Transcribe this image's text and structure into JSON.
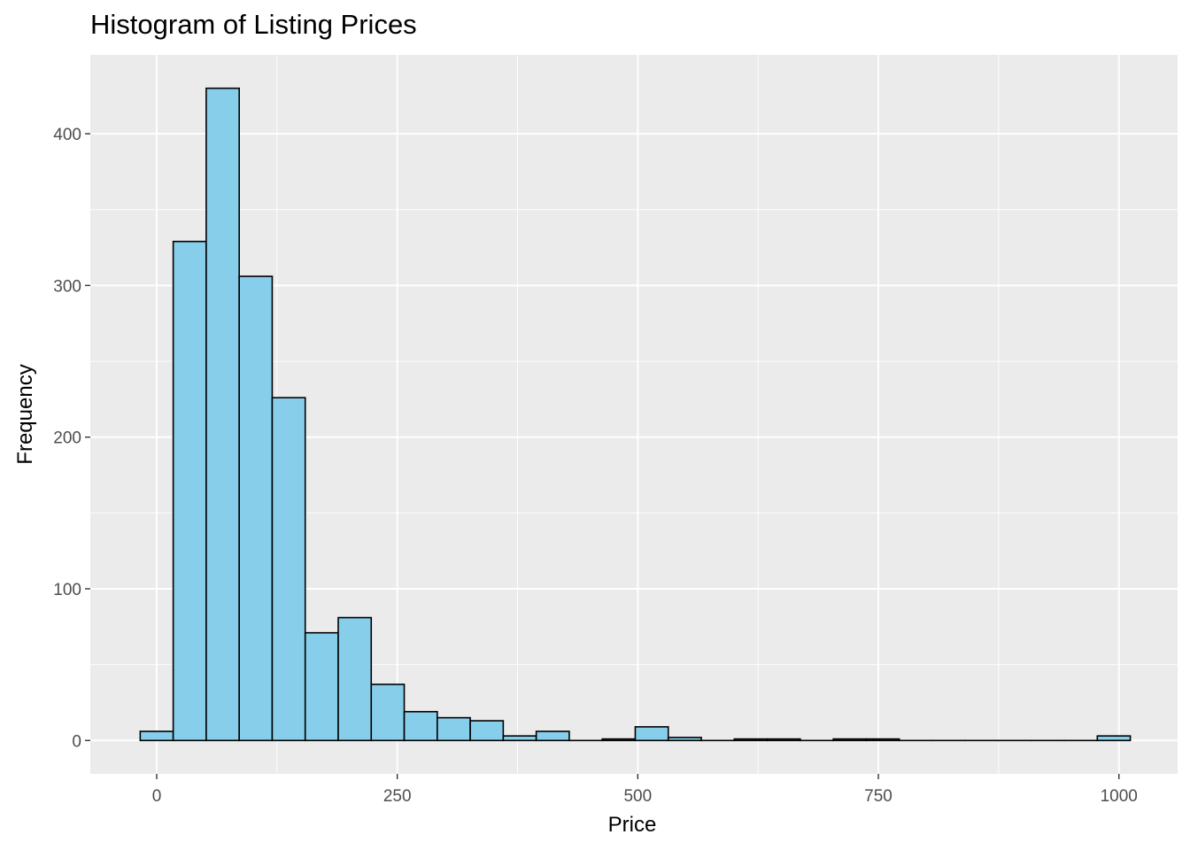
{
  "chart_data": {
    "type": "bar",
    "title": "Histogram of Listing Prices",
    "xlabel": "Price",
    "ylabel": "Frequency",
    "bin_width": 34.3,
    "xlim": [
      -69,
      1061
    ],
    "ylim": [
      -22,
      452
    ],
    "x_ticks": [
      0,
      250,
      500,
      750,
      1000
    ],
    "x_tick_labels": [
      "0",
      "250",
      "500",
      "750",
      "1000"
    ],
    "y_ticks": [
      0,
      100,
      200,
      300,
      400
    ],
    "y_tick_labels": [
      "0",
      "100",
      "200",
      "300",
      "400"
    ],
    "grid": true,
    "legend": "none",
    "bins": [
      {
        "center": 0.0,
        "count": 6
      },
      {
        "center": 34.3,
        "count": 329
      },
      {
        "center": 68.6,
        "count": 430
      },
      {
        "center": 102.9,
        "count": 306
      },
      {
        "center": 137.2,
        "count": 226
      },
      {
        "center": 171.5,
        "count": 71
      },
      {
        "center": 205.8,
        "count": 81
      },
      {
        "center": 240.1,
        "count": 37
      },
      {
        "center": 274.4,
        "count": 19
      },
      {
        "center": 308.7,
        "count": 15
      },
      {
        "center": 343.0,
        "count": 13
      },
      {
        "center": 377.3,
        "count": 3
      },
      {
        "center": 411.6,
        "count": 6
      },
      {
        "center": 445.9,
        "count": 0
      },
      {
        "center": 480.2,
        "count": 1
      },
      {
        "center": 514.5,
        "count": 9
      },
      {
        "center": 548.8,
        "count": 2
      },
      {
        "center": 583.1,
        "count": 0
      },
      {
        "center": 617.4,
        "count": 1
      },
      {
        "center": 651.7,
        "count": 1
      },
      {
        "center": 686.0,
        "count": 0
      },
      {
        "center": 720.3,
        "count": 1
      },
      {
        "center": 754.6,
        "count": 1
      },
      {
        "center": 788.9,
        "count": 0
      },
      {
        "center": 823.2,
        "count": 0
      },
      {
        "center": 857.5,
        "count": 0
      },
      {
        "center": 891.8,
        "count": 0
      },
      {
        "center": 926.1,
        "count": 0
      },
      {
        "center": 960.4,
        "count": 0
      },
      {
        "center": 994.7,
        "count": 3
      }
    ],
    "colors": {
      "fill": "#87CEEB",
      "outline": "#000000",
      "panel_background": "#EBEBEB",
      "grid": "#FFFFFF"
    }
  }
}
